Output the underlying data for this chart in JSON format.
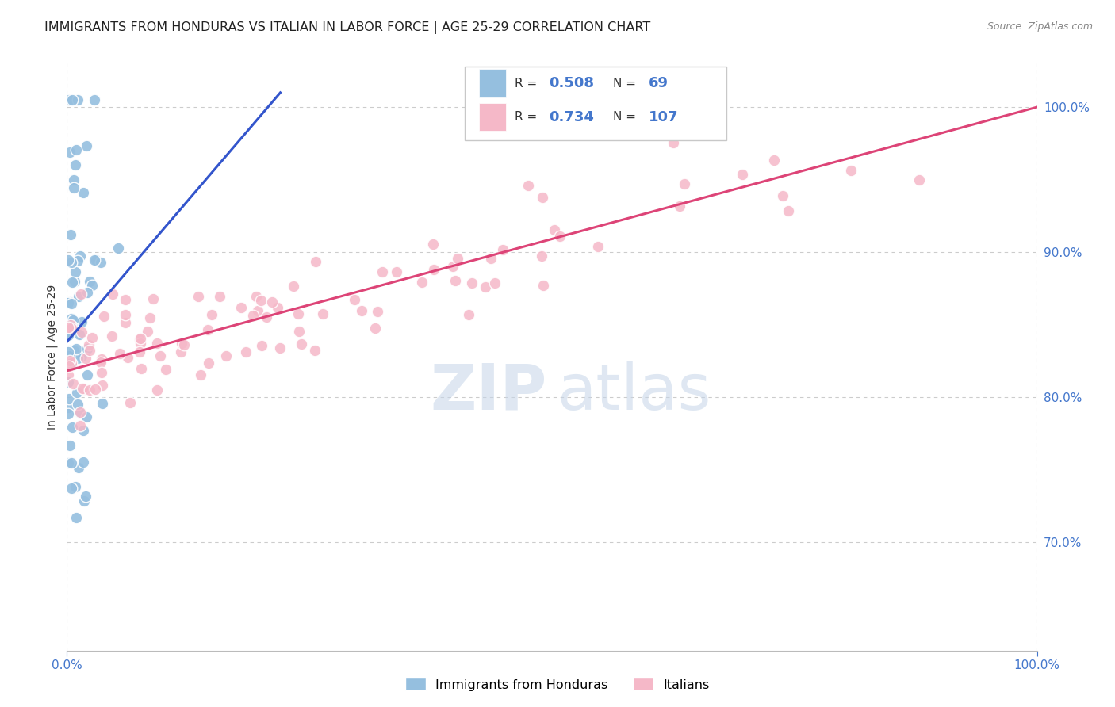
{
  "title": "IMMIGRANTS FROM HONDURAS VS ITALIAN IN LABOR FORCE | AGE 25-29 CORRELATION CHART",
  "source": "Source: ZipAtlas.com",
  "ylabel": "In Labor Force | Age 25-29",
  "ytick_positions": [
    0.7,
    0.8,
    0.9,
    1.0
  ],
  "xlim": [
    0.0,
    1.0
  ],
  "ylim": [
    0.625,
    1.03
  ],
  "watermark_zip": "ZIP",
  "watermark_atlas": "atlas",
  "legend_items": [
    {
      "label": "Immigrants from Honduras",
      "R": 0.508,
      "N": 69
    },
    {
      "label": "Italians",
      "R": 0.734,
      "N": 107
    }
  ],
  "scatter_colors": {
    "blue": "#95bfdf",
    "pink": "#f5b8c8"
  },
  "line_colors": {
    "blue": "#3355cc",
    "pink": "#dd4477"
  },
  "grid_color": "#cccccc",
  "axis_color": "#4477cc",
  "title_color": "#222222",
  "source_color": "#888888",
  "ylabel_color": "#333333"
}
